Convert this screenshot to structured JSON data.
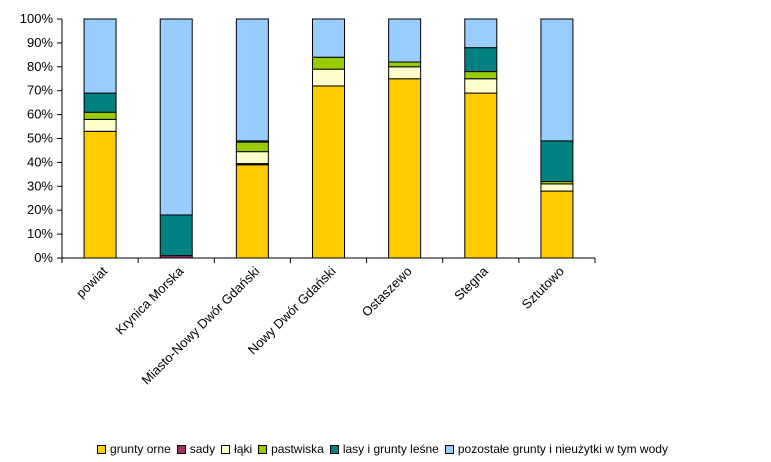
{
  "chart_data": {
    "type": "bar",
    "stacked": true,
    "categories": [
      "powiat",
      "Krynica Morska",
      "Miasto-Nowy Dwór Gdański",
      "Nowy Dwór Gdański",
      "Ostaszewo",
      "Stegna",
      "Sztutowo"
    ],
    "series": [
      {
        "name": "grunty orne",
        "color": "#FFCC00",
        "values": [
          53,
          0,
          39,
          72,
          75,
          69,
          28
        ]
      },
      {
        "name": "sady",
        "color": "#993366",
        "values": [
          0,
          1,
          0.5,
          0,
          0,
          0,
          0
        ]
      },
      {
        "name": "łąki",
        "color": "#FFFFCC",
        "values": [
          5,
          0,
          5,
          7,
          5,
          6,
          3
        ]
      },
      {
        "name": "pastwiska",
        "color": "#99CC00",
        "values": [
          3,
          0,
          4,
          5,
          2,
          3,
          1
        ]
      },
      {
        "name": "lasy i grunty leśne",
        "color": "#008080",
        "values": [
          8,
          17,
          0.5,
          0,
          0,
          10,
          17
        ]
      },
      {
        "name": "pozostałe grunty i nieużytki w tym wody",
        "color": "#99CCFF",
        "values": [
          31,
          82,
          51,
          16,
          18,
          12,
          51
        ]
      }
    ],
    "ylim": [
      0,
      100
    ],
    "yticks": [
      "0%",
      "10%",
      "20%",
      "30%",
      "40%",
      "50%",
      "60%",
      "70%",
      "80%",
      "90%",
      "100%"
    ],
    "grid": false,
    "legend_position": "bottom"
  }
}
